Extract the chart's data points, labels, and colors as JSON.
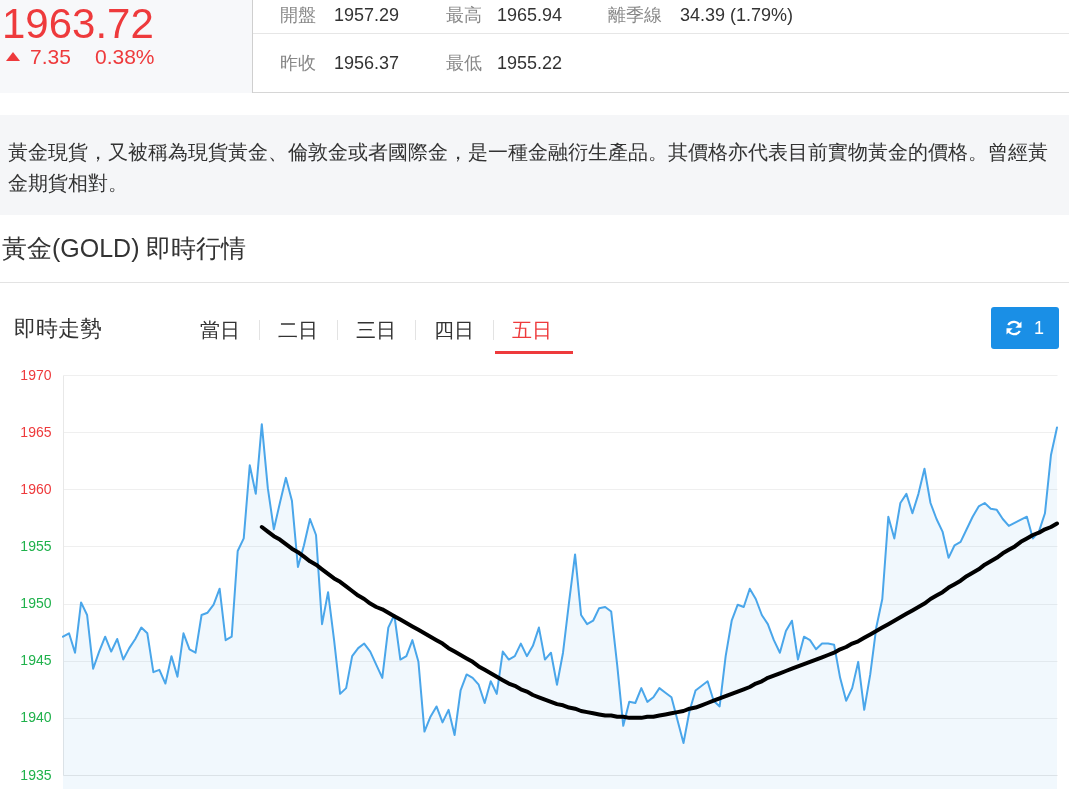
{
  "chart_data": {
    "type": "area",
    "title": "黃金(GOLD) 即時行情",
    "subtitle": "即時走勢",
    "annotations": [
      "1963.72",
      "7.35",
      "0.38%",
      "開盤",
      "1957.29",
      "最高",
      "1965.94",
      "離季線",
      "34.39 (1.79%)",
      "昨收",
      "1956.37",
      "最低",
      "1955.22",
      "黃金現貨，又被稱為現貨黃金、倫敦金或者國際金，是一種金融衍生產品。其價格亦代表目前實物黃金的價格。曾經黃金期貨相對。",
      "當日",
      "二日",
      "三日",
      "四日",
      "五日",
      "1"
    ],
    "categories": [
      null,
      null,
      null,
      null,
      null,
      null,
      null,
      null,
      null,
      null,
      null,
      null,
      null,
      null,
      null,
      null,
      null,
      null,
      null,
      null,
      null,
      null,
      null,
      null,
      null,
      null,
      null,
      null,
      null,
      null,
      null,
      null,
      null,
      null,
      null,
      null,
      null,
      null,
      null,
      null,
      null,
      null,
      null,
      null,
      null,
      null,
      null,
      null,
      null,
      null,
      null,
      null,
      null,
      null,
      null,
      null,
      null,
      null,
      null,
      null,
      null,
      null,
      null,
      null,
      null,
      null,
      null,
      null,
      null,
      null,
      null,
      null,
      null,
      null,
      null,
      null,
      null,
      null,
      null,
      null,
      null,
      null,
      null,
      null,
      null,
      null,
      null,
      null,
      null,
      null,
      null,
      null,
      null,
      null,
      null,
      null,
      null,
      null,
      null,
      null,
      null,
      null,
      null,
      null,
      null,
      null,
      null,
      null,
      null,
      null,
      null,
      null,
      null,
      null,
      null,
      null,
      null,
      null,
      null,
      null,
      null,
      null,
      null,
      null,
      null,
      null,
      null,
      null,
      null,
      null,
      null,
      null,
      null,
      null,
      null,
      null,
      null,
      null,
      null,
      null,
      null,
      null,
      null,
      null,
      null,
      null,
      null,
      null,
      null,
      null,
      null,
      null,
      null,
      null,
      null,
      null,
      null,
      null,
      null,
      null,
      null,
      null,
      null,
      null,
      null,
      null
    ],
    "series": [
      {
        "color": "#4aa6ea",
        "values": [
          1947.1,
          1947.4,
          1945.7,
          1950.1,
          1949.0,
          1944.3,
          1945.8,
          1947.1,
          1945.8,
          1946.9,
          1945.1,
          1946.1,
          1946.9,
          1947.9,
          1947.4,
          1944.0,
          1944.2,
          1943.0,
          1945.4,
          1943.6,
          1947.4,
          1946.0,
          1945.7,
          1949.0,
          1949.2,
          1949.9,
          1951.3,
          1946.8,
          1947.1,
          1954.6,
          1955.7,
          1962.1,
          1959.6,
          1965.7,
          1960.1,
          1956.5,
          1958.8,
          1961.0,
          1959.0,
          1953.2,
          1955.1,
          1957.4,
          1956.0,
          1948.2,
          1951.0,
          1946.8,
          1942.1,
          1942.6,
          1945.4,
          1946.1,
          1946.5,
          1945.8,
          null,
          1943.5,
          1947.9,
          1949.0,
          1945.1,
          1945.4,
          1946.8,
          1944.9,
          1938.8,
          1940.1,
          1941.0,
          1939.6,
          1940.7,
          1938.5,
          1942.4,
          1943.8,
          1943.5,
          1942.9,
          1941.3,
          1943.2,
          1942.1,
          1945.8,
          1945.1,
          1945.4,
          1946.5,
          1945.4,
          1946.3,
          1947.9,
          1945.1,
          1945.7,
          1942.9,
          1945.7,
          1950.1,
          1954.3,
          1949.0,
          1948.2,
          1948.5,
          1949.6,
          1949.7,
          1949.3,
          1944.6,
          1939.3,
          1941.4,
          1941.3,
          1942.6,
          1941.4,
          1941.8,
          1942.6,
          1942.2,
          1941.8,
          null,
          1937.8,
          1940.6,
          1942.4,
          null,
          1943.2,
          1941.5,
          1941.0,
          1945.4,
          1948.5,
          1949.9,
          1949.7,
          1951.3,
          1950.4,
          1949.0,
          1948.2,
          1946.8,
          1945.7,
          1947.6,
          1948.5,
          1945.1,
          1947.1,
          1946.8,
          1946.0,
          1946.5,
          1946.5,
          1946.4,
          1943.5,
          1941.5,
          1942.6,
          1944.9,
          1940.7,
          1943.8,
          1947.9,
          1950.4,
          1957.6,
          1955.7,
          1958.8,
          1959.6,
          1957.9,
          1959.6,
          1961.8,
          1958.8,
          1957.4,
          1956.3,
          1954.0,
          1955.1,
          1955.4,
          1956.5,
          1957.6,
          1958.5,
          1958.8,
          1958.3,
          1958.2,
          1957.4,
          1956.8,
          null,
          null,
          1957.6,
          1955.7,
          1956.3,
          1957.9,
          1963.0,
          1965.4
        ]
      },
      {
        "type": "line",
        "color": "#000000",
        "values": [
          null,
          null,
          null,
          null,
          null,
          null,
          null,
          null,
          null,
          null,
          null,
          null,
          null,
          null,
          null,
          null,
          null,
          null,
          null,
          null,
          null,
          null,
          null,
          null,
          null,
          null,
          null,
          null,
          null,
          null,
          null,
          null,
          null,
          1956.7,
          1956.3,
          1955.9,
          1955.6,
          1955.2,
          1954.8,
          1954.5,
          1954.1,
          1953.7,
          1953.4,
          1953.0,
          1952.6,
          1952.2,
          1951.9,
          1951.5,
          1951.1,
          1950.7,
          1950.4,
          1950.0,
          1949.7,
          1949.5,
          1949.2,
          1948.9,
          1948.6,
          1948.3,
          1948.0,
          1947.7,
          1947.4,
          1947.1,
          1946.8,
          1946.5,
          1946.1,
          1945.8,
          1945.5,
          1945.2,
          1944.9,
          1944.5,
          1944.2,
          1943.9,
          1943.6,
          1943.3,
          1943.0,
          1942.8,
          1942.5,
          1942.3,
          1942.0,
          1941.8,
          1941.6,
          1941.4,
          1941.2,
          1941.1,
          1940.9,
          1940.8,
          1940.6,
          1940.5,
          1940.4,
          1940.3,
          1940.2,
          1940.2,
          1940.1,
          1940.1,
          1940.0,
          1940.0,
          1940.0,
          1940.1,
          1940.1,
          1940.2,
          1940.3,
          1940.4,
          1940.5,
          1940.6,
          1940.8,
          1940.9,
          1941.1,
          1941.3,
          1941.5,
          1941.7,
          1941.9,
          1942.1,
          1942.3,
          1942.5,
          1942.7,
          1943.0,
          1943.2,
          1943.5,
          1943.7,
          1943.9,
          1944.1,
          1944.3,
          1944.5,
          1944.7,
          1944.9,
          1945.1,
          1945.3,
          1945.5,
          1945.7,
          1946.0,
          1946.2,
          1946.5,
          1946.7,
          1947.0,
          1947.3,
          1947.6,
          1947.9,
          1948.2,
          1948.5,
          1948.8,
          1949.1,
          1949.4,
          1949.7,
          1950.0,
          1950.4,
          1950.7,
          1951.0,
          1951.4,
          1951.7,
          1952.0,
          1952.4,
          1952.7,
          1953.0,
          1953.4,
          1953.7,
          1954.0,
          1954.4,
          1954.7,
          1955.0,
          1955.4,
          1955.7,
          1956.0,
          1956.2,
          1956.5,
          1956.7,
          1957.0
        ]
      }
    ],
    "ylim": [
      1935,
      1970
    ],
    "yticks": [
      1935,
      1940,
      1945,
      1950,
      1955,
      1960,
      1965,
      1970
    ],
    "grid": "y",
    "tick_labels": "y"
  }
}
